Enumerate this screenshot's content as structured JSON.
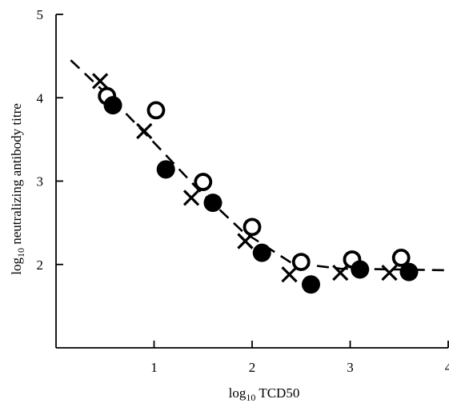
{
  "chart_data": {
    "type": "scatter",
    "title": "",
    "xlabel": {
      "prefix": "log",
      "sub": "10",
      "rest": " TCD50"
    },
    "ylabel": {
      "prefix": "log",
      "sub": "10",
      "rest": " neutralizing antibody titre"
    },
    "xlim": [
      0,
      4
    ],
    "ylim": [
      1,
      5
    ],
    "x_ticks": [
      1,
      2,
      3,
      4
    ],
    "y_ticks": [
      2,
      3,
      4,
      5
    ],
    "grid": false,
    "legend": "none",
    "series": [
      {
        "marker": "cross",
        "points": [
          [
            0.45,
            4.2
          ],
          [
            0.9,
            3.6
          ],
          [
            1.38,
            2.8
          ],
          [
            1.93,
            2.28
          ],
          [
            2.38,
            1.88
          ],
          [
            2.9,
            1.9
          ],
          [
            3.4,
            1.9
          ]
        ]
      },
      {
        "marker": "open-circle",
        "points": [
          [
            0.52,
            4.02
          ],
          [
            1.02,
            3.85
          ],
          [
            1.5,
            2.99
          ],
          [
            2.0,
            2.45
          ],
          [
            2.5,
            2.03
          ],
          [
            3.02,
            2.06
          ],
          [
            3.52,
            2.08
          ]
        ]
      },
      {
        "marker": "filled-circle",
        "points": [
          [
            0.58,
            3.91
          ],
          [
            1.12,
            3.14
          ],
          [
            1.6,
            2.74
          ],
          [
            2.1,
            2.14
          ],
          [
            2.6,
            1.76
          ],
          [
            3.1,
            1.94
          ],
          [
            3.6,
            1.91
          ]
        ]
      }
    ],
    "trendline": {
      "style": "dashed",
      "points": [
        [
          0.15,
          4.45
        ],
        [
          0.6,
          3.95
        ],
        [
          1.05,
          3.4
        ],
        [
          1.45,
          2.9
        ],
        [
          1.9,
          2.4
        ],
        [
          2.4,
          2.02
        ],
        [
          2.9,
          1.95
        ],
        [
          3.5,
          1.94
        ],
        [
          4.0,
          1.93
        ]
      ]
    }
  }
}
